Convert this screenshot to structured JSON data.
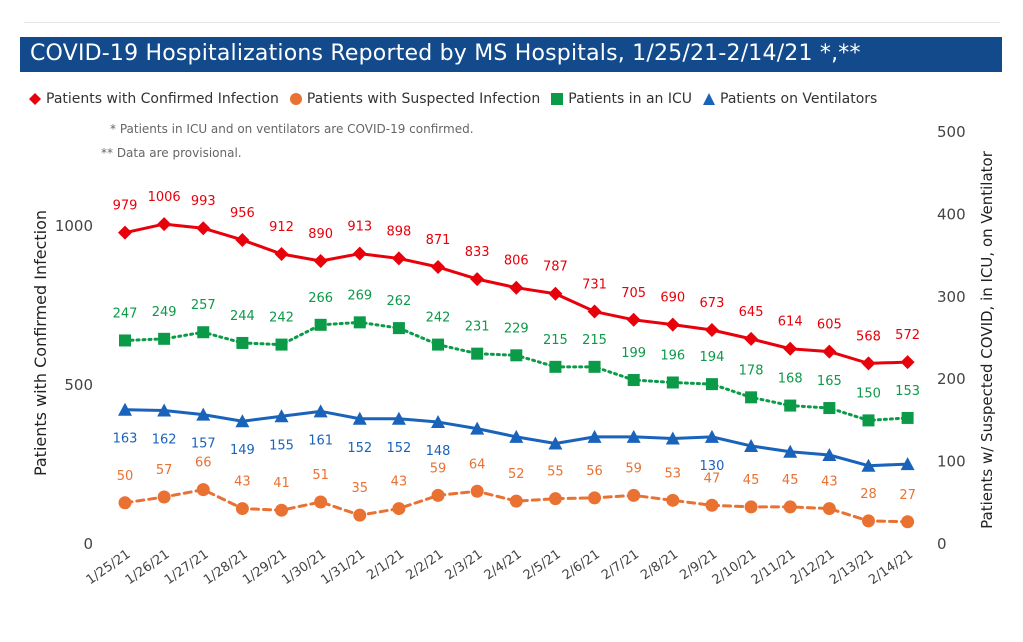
{
  "title": "COVID-19 Hospitalizations Reported by MS Hospitals, 1/25/21-2/14/21 *,**",
  "notes": [
    "* Patients in ICU and on ventilators are COVID-19 confirmed.",
    "** Data are provisional."
  ],
  "chart_data": {
    "type": "line",
    "title": "COVID-19 Hospitalizations Reported by MS Hospitals, 1/25/21-2/14/21 *,**",
    "categories": [
      "1/25/21",
      "1/26/21",
      "1/27/21",
      "1/28/21",
      "1/29/21",
      "1/30/21",
      "1/31/21",
      "2/1/21",
      "2/2/21",
      "2/3/21",
      "2/4/21",
      "2/5/21",
      "2/6/21",
      "2/7/21",
      "2/8/21",
      "2/9/21",
      "2/10/21",
      "2/11/21",
      "2/12/21",
      "2/13/21",
      "2/14/21"
    ],
    "ylabel": "Patients with Confirmed Infection",
    "y2label": "Patients w/ Suspected COVID, in ICU, on Ventilator",
    "ylim": [
      0,
      1000
    ],
    "y2lim": [
      0,
      500
    ],
    "yticks": [
      0,
      500,
      1000
    ],
    "y2ticks": [
      0,
      100,
      200,
      300,
      400,
      500
    ],
    "legend_position": "top-left",
    "grid": false,
    "series": [
      {
        "name": "Patients with Confirmed Infection",
        "axis": "left",
        "color": "#e8000b",
        "marker": "diamond",
        "line": "solid",
        "values": [
          979,
          1006,
          993,
          956,
          912,
          890,
          913,
          898,
          871,
          833,
          806,
          787,
          731,
          705,
          690,
          673,
          645,
          614,
          605,
          568,
          572
        ],
        "label_color": "#e8000b",
        "labels_shown": [
          true,
          true,
          true,
          true,
          true,
          true,
          true,
          true,
          true,
          true,
          true,
          true,
          true,
          true,
          true,
          true,
          true,
          true,
          true,
          true,
          true
        ]
      },
      {
        "name": "Patients with Suspected Infection",
        "axis": "right",
        "color": "#e97132",
        "marker": "circle",
        "line": "dashed",
        "values": [
          50,
          57,
          66,
          43,
          41,
          51,
          35,
          43,
          59,
          64,
          52,
          55,
          56,
          59,
          53,
          47,
          45,
          45,
          43,
          28,
          27
        ],
        "label_color": "#e97132",
        "labels_shown": [
          true,
          true,
          true,
          true,
          true,
          true,
          true,
          true,
          true,
          true,
          true,
          true,
          true,
          true,
          true,
          true,
          true,
          true,
          true,
          true,
          true
        ]
      },
      {
        "name": "Patients in an ICU",
        "axis": "right",
        "color": "#0b9a48",
        "marker": "square",
        "line": "dotted",
        "values": [
          247,
          249,
          257,
          244,
          242,
          266,
          269,
          262,
          242,
          231,
          229,
          215,
          215,
          199,
          196,
          194,
          178,
          168,
          165,
          150,
          153
        ],
        "label_color": "#0b9a48",
        "labels_shown": [
          true,
          true,
          true,
          true,
          true,
          true,
          true,
          true,
          true,
          true,
          true,
          true,
          true,
          true,
          true,
          true,
          true,
          true,
          true,
          true,
          true
        ]
      },
      {
        "name": "Patients on Ventilators",
        "axis": "right",
        "color": "#1a63bb",
        "marker": "triangle",
        "line": "solid",
        "values": [
          163,
          162,
          157,
          149,
          155,
          161,
          152,
          152,
          148,
          140,
          130,
          122,
          130,
          130,
          128,
          130,
          119,
          112,
          108,
          95,
          97
        ],
        "label_color": "#1a63bb",
        "labels_shown": [
          true,
          true,
          true,
          true,
          true,
          true,
          true,
          true,
          true,
          false,
          false,
          false,
          false,
          false,
          false,
          true,
          false,
          false,
          false,
          false,
          false
        ]
      }
    ]
  }
}
